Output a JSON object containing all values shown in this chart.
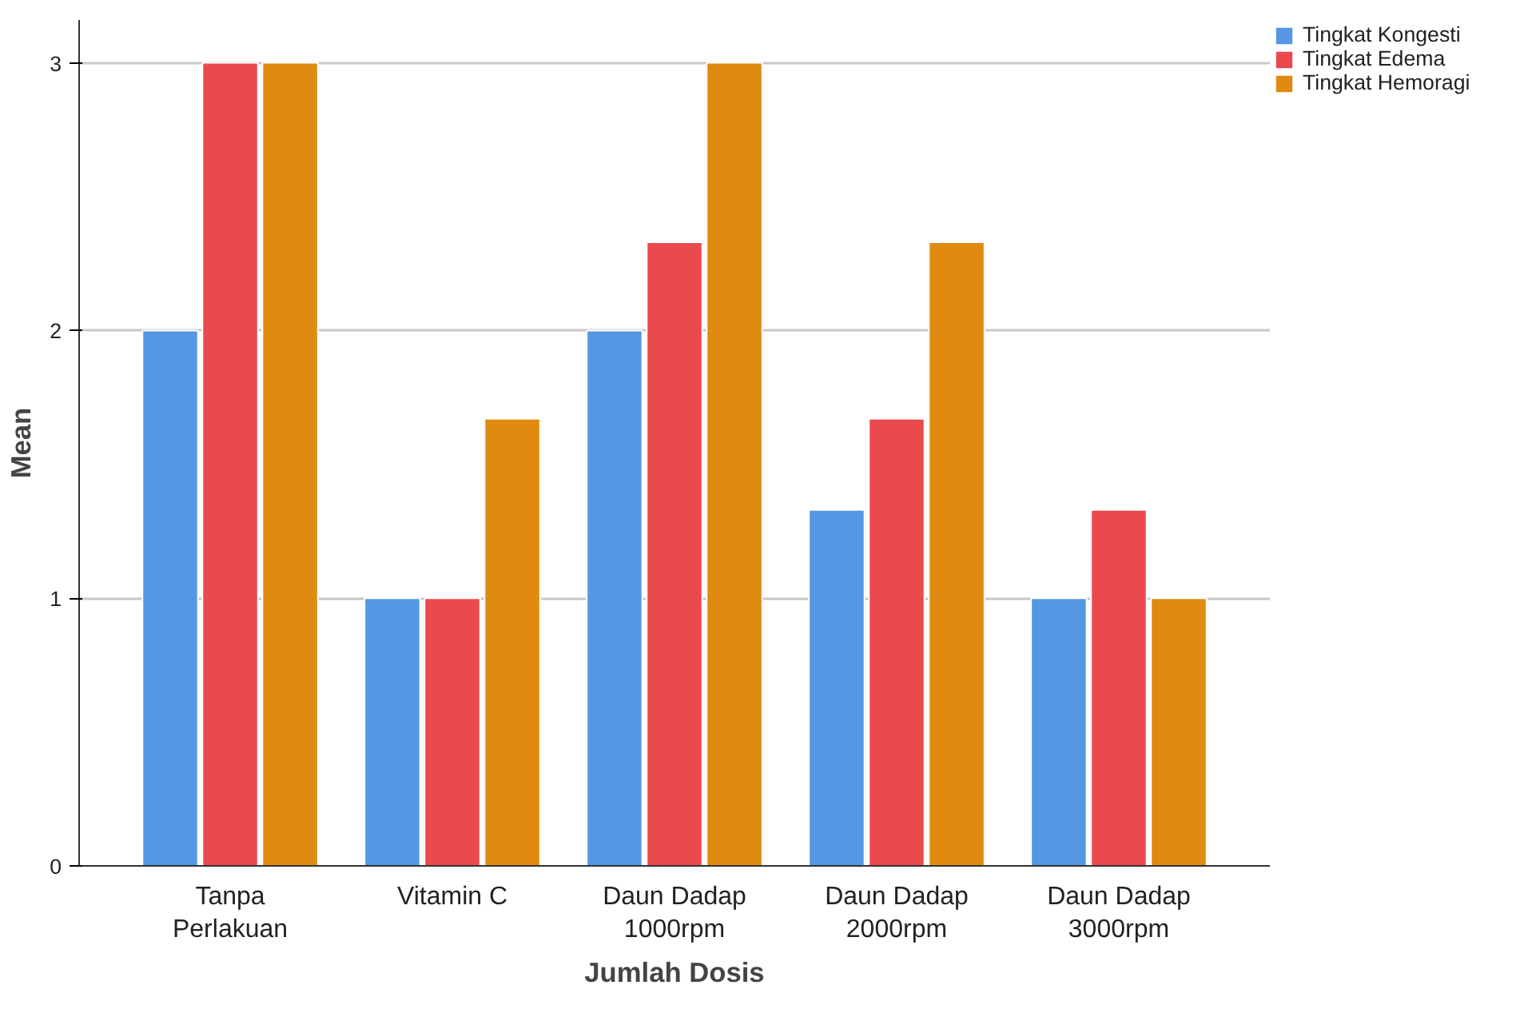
{
  "chart_data": {
    "type": "bar",
    "xlabel": "Jumlah Dosis",
    "ylabel": "Mean",
    "categories": [
      "Tanpa\nPerlakuan",
      "Vitamin C",
      "Daun Dadap\n1000rpm",
      "Daun Dadap\n2000rpm",
      "Daun Dadap\n3000rpm"
    ],
    "series": [
      {
        "name": "Tingkat Kongesti",
        "color": "#5597e3",
        "values": [
          2,
          1,
          2,
          1.33,
          1
        ]
      },
      {
        "name": "Tingkat Edema",
        "color": "#ea4a4e",
        "values": [
          3,
          1,
          2.33,
          1.67,
          1.33
        ]
      },
      {
        "name": "Tingkat Hemoragi",
        "color": "#e08a10",
        "values": [
          3,
          1.67,
          3,
          2.33,
          1
        ]
      }
    ],
    "ylim": [
      0,
      3.16
    ],
    "yticks": [
      0,
      1,
      2,
      3
    ],
    "grid": "y",
    "legend": "top right"
  }
}
